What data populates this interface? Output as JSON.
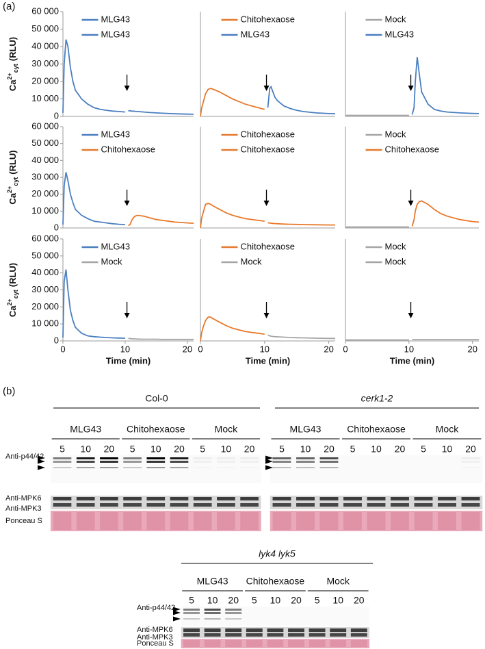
{
  "panel_labels": [
    "(a)",
    "(b)"
  ],
  "chart_data": [
    {
      "type": "line",
      "xlim": [
        0,
        21
      ],
      "ylim": [
        0,
        60000
      ],
      "yticks": [
        0,
        {
          "value": 10000,
          "label": "10 000"
        },
        {
          "value": 20000,
          "label": "20 000"
        },
        {
          "value": 30000,
          "label": "30 000"
        },
        {
          "value": 40000,
          "label": "40 000"
        },
        {
          "value": 50000,
          "label": "50 000"
        },
        {
          "value": 60000,
          "label": "60 000"
        }
      ],
      "ylabel": {
        "base": "Ca",
        "sup": "2+",
        "sub": "cyt",
        "unit": "(RLU)"
      },
      "series": [
        {
          "name": "MLG43",
          "color": "#4a7fc1",
          "x": [
            0,
            0.2,
            0.5,
            0.8,
            1.2,
            1.6,
            2,
            3,
            4,
            5,
            6,
            7,
            8,
            9,
            10
          ],
          "values": [
            2000,
            30000,
            44000,
            40000,
            28000,
            20000,
            15000,
            10000,
            7000,
            5000,
            4000,
            3500,
            3000,
            2800,
            2500
          ]
        },
        {
          "name": "MLG43",
          "color": "#4a7fc1",
          "x": [
            10.5,
            10.8,
            11,
            11.3,
            11.6,
            12,
            13,
            14,
            15,
            16,
            18,
            20,
            21
          ],
          "values": [
            3200,
            3200,
            3000,
            3000,
            2900,
            2800,
            2500,
            2200,
            2000,
            1800,
            1500,
            1300,
            1200
          ]
        }
      ]
    },
    {
      "type": "line",
      "xlim": [
        0,
        21
      ],
      "ylim": [
        0,
        60000
      ],
      "series": [
        {
          "name": "Chitohexaose",
          "color": "#e8782a",
          "x": [
            0,
            0.2,
            0.5,
            0.8,
            1.2,
            1.6,
            2,
            3,
            4,
            5,
            6,
            7,
            8,
            9,
            10
          ],
          "values": [
            0,
            5000,
            9000,
            13000,
            15500,
            16000,
            15500,
            14000,
            12000,
            10000,
            8500,
            7000,
            6000,
            5000,
            4000
          ]
        },
        {
          "name": "MLG43",
          "color": "#4a7fc1",
          "x": [
            10.5,
            10.8,
            11,
            11.3,
            11.6,
            12,
            13,
            14,
            15,
            16,
            18,
            20,
            21
          ],
          "values": [
            5000,
            16000,
            17000,
            14000,
            11000,
            9000,
            6000,
            4500,
            3500,
            2800,
            2000,
            1600,
            1500
          ]
        }
      ]
    },
    {
      "type": "line",
      "xlim": [
        0,
        21
      ],
      "ylim": [
        0,
        60000
      ],
      "series": [
        {
          "name": "Mock",
          "color": "#a5a5a5",
          "x": [
            0,
            0.2,
            0.5,
            0.8,
            1.2,
            1.6,
            2,
            3,
            4,
            5,
            6,
            7,
            8,
            9,
            10
          ],
          "values": [
            500,
            600,
            600,
            600,
            600,
            600,
            600,
            600,
            600,
            600,
            600,
            600,
            600,
            600,
            600
          ]
        },
        {
          "name": "MLG43",
          "color": "#4a7fc1",
          "x": [
            10.5,
            10.8,
            11,
            11.3,
            11.6,
            12,
            13,
            14,
            15,
            16,
            18,
            20,
            21
          ],
          "values": [
            1000,
            5000,
            20000,
            34000,
            25000,
            14000,
            7000,
            4000,
            3000,
            2500,
            2000,
            1700,
            1600
          ]
        }
      ]
    },
    {
      "type": "line",
      "xlim": [
        0,
        21
      ],
      "ylim": [
        0,
        60000
      ],
      "yticks": [
        0,
        {
          "value": 10000,
          "label": "10 000"
        },
        {
          "value": 20000,
          "label": "20 000"
        },
        {
          "value": 30000,
          "label": "30 000"
        },
        {
          "value": 40000,
          "label": "40 000"
        },
        {
          "value": 50000,
          "label": "50 000"
        },
        {
          "value": 60000,
          "label": "60 000"
        }
      ],
      "ylabel": {
        "base": "Ca",
        "sup": "2+",
        "sub": "cyt",
        "unit": "(RLU)"
      },
      "series": [
        {
          "name": "MLG43",
          "color": "#4a7fc1",
          "x": [
            0,
            0.2,
            0.5,
            0.8,
            1.2,
            1.6,
            2,
            3,
            4,
            5,
            6,
            7,
            8,
            9,
            10
          ],
          "values": [
            2000,
            25000,
            33000,
            28000,
            20000,
            15000,
            11000,
            7500,
            5500,
            4000,
            3500,
            3000,
            2500,
            2200,
            2000
          ]
        },
        {
          "name": "Chitohexaose",
          "color": "#e8782a",
          "x": [
            10.5,
            10.8,
            11,
            11.3,
            11.6,
            12,
            13,
            14,
            15,
            16,
            18,
            20,
            21
          ],
          "values": [
            1500,
            2000,
            4000,
            6000,
            7000,
            7500,
            7000,
            6000,
            5000,
            4500,
            3500,
            3000,
            2800
          ]
        }
      ]
    },
    {
      "type": "line",
      "xlim": [
        0,
        21
      ],
      "ylim": [
        0,
        60000
      ],
      "series": [
        {
          "name": "Chitohexaose",
          "color": "#e8782a",
          "x": [
            0,
            0.2,
            0.5,
            0.8,
            1.2,
            1.6,
            2,
            3,
            4,
            5,
            6,
            7,
            8,
            9,
            10
          ],
          "values": [
            0,
            6000,
            10000,
            14000,
            14500,
            14000,
            13000,
            11000,
            9000,
            7500,
            6500,
            5500,
            5000,
            4500,
            4000
          ]
        },
        {
          "name": "Chitohexaose",
          "color": "#e8782a",
          "x": [
            10.5,
            10.8,
            11,
            11.3,
            11.6,
            12,
            13,
            14,
            15,
            16,
            18,
            20,
            21
          ],
          "values": [
            3000,
            3000,
            2800,
            2700,
            2600,
            2500,
            2300,
            2200,
            2100,
            2000,
            1900,
            1800,
            1800
          ]
        }
      ]
    },
    {
      "type": "line",
      "xlim": [
        0,
        21
      ],
      "ylim": [
        0,
        60000
      ],
      "series": [
        {
          "name": "Mock",
          "color": "#a5a5a5",
          "x": [
            0,
            0.2,
            0.5,
            0.8,
            1.2,
            1.6,
            2,
            3,
            4,
            5,
            6,
            7,
            8,
            9,
            10
          ],
          "values": [
            500,
            600,
            600,
            600,
            600,
            600,
            600,
            600,
            600,
            600,
            600,
            600,
            600,
            600,
            600
          ]
        },
        {
          "name": "Chitohexaose",
          "color": "#e8782a",
          "x": [
            10.5,
            10.8,
            11,
            11.3,
            11.6,
            12,
            13,
            14,
            15,
            16,
            18,
            20,
            21
          ],
          "values": [
            1000,
            5000,
            10000,
            14000,
            15500,
            16000,
            14000,
            11000,
            8500,
            7000,
            5000,
            3800,
            3500
          ]
        }
      ]
    },
    {
      "type": "line",
      "xlim": [
        0,
        21
      ],
      "ylim": [
        0,
        60000
      ],
      "yticks": [
        0,
        {
          "value": 10000,
          "label": "10 000"
        },
        {
          "value": 20000,
          "label": "20 000"
        },
        {
          "value": 30000,
          "label": "30 000"
        },
        {
          "value": 40000,
          "label": "40 000"
        },
        {
          "value": 50000,
          "label": "50 000"
        },
        {
          "value": 60000,
          "label": "60 000"
        }
      ],
      "xticks": [
        0,
        10,
        20
      ],
      "xlabel": "Time (min)",
      "ylabel": {
        "base": "Ca",
        "sup": "2+",
        "sub": "cyt",
        "unit": "(RLU)"
      },
      "series": [
        {
          "name": "MLG43",
          "color": "#4a7fc1",
          "x": [
            0,
            0.2,
            0.5,
            0.8,
            1.2,
            1.6,
            2,
            3,
            4,
            5,
            6,
            7,
            8,
            9,
            10
          ],
          "values": [
            2000,
            35000,
            42000,
            30000,
            18000,
            12000,
            8000,
            4500,
            3000,
            2500,
            2200,
            2000,
            1800,
            1700,
            1600
          ]
        },
        {
          "name": "Mock",
          "color": "#a5a5a5",
          "x": [
            10.5,
            10.8,
            11,
            11.3,
            11.6,
            12,
            13,
            14,
            15,
            16,
            18,
            20,
            21
          ],
          "values": [
            1500,
            1400,
            1300,
            1200,
            1200,
            1100,
            1000,
            1000,
            1000,
            900,
            900,
            900,
            900
          ]
        }
      ]
    },
    {
      "type": "line",
      "xlim": [
        0,
        21
      ],
      "ylim": [
        0,
        60000
      ],
      "xticks": [
        0,
        10,
        20
      ],
      "xlabel": "Time (min)",
      "series": [
        {
          "name": "Chitohexaose",
          "color": "#e8782a",
          "x": [
            0,
            0.2,
            0.5,
            0.8,
            1.2,
            1.6,
            2,
            3,
            4,
            5,
            6,
            7,
            8,
            9,
            10
          ],
          "values": [
            0,
            5000,
            9000,
            12000,
            14000,
            14000,
            13000,
            11000,
            9000,
            7500,
            6500,
            5500,
            5000,
            4500,
            4000
          ]
        },
        {
          "name": "Mock",
          "color": "#a5a5a5",
          "x": [
            10.5,
            10.8,
            11,
            11.3,
            11.6,
            12,
            13,
            14,
            15,
            16,
            18,
            20,
            21
          ],
          "values": [
            3500,
            3000,
            2800,
            2600,
            2500,
            2400,
            2200,
            2000,
            1900,
            1800,
            1600,
            1500,
            1500
          ]
        }
      ]
    },
    {
      "type": "line",
      "xlim": [
        0,
        21
      ],
      "ylim": [
        0,
        60000
      ],
      "xticks": [
        0,
        10,
        20
      ],
      "xlabel": "Time (min)",
      "series": [
        {
          "name": "Mock",
          "color": "#a5a5a5",
          "x": [
            0,
            0.2,
            0.5,
            0.8,
            1.2,
            1.6,
            2,
            3,
            4,
            5,
            6,
            7,
            8,
            9,
            10
          ],
          "values": [
            500,
            600,
            600,
            600,
            600,
            600,
            600,
            600,
            600,
            600,
            600,
            600,
            600,
            600,
            600
          ]
        },
        {
          "name": "Mock",
          "color": "#a5a5a5",
          "x": [
            10.5,
            10.8,
            11,
            11.3,
            11.6,
            12,
            13,
            14,
            15,
            16,
            18,
            20,
            21
          ],
          "values": [
            800,
            800,
            800,
            800,
            800,
            800,
            800,
            800,
            800,
            800,
            800,
            800,
            800
          ]
        }
      ]
    }
  ],
  "blots": [
    {
      "title": "Col-0",
      "treatments": [
        {
          "name": "MLG43",
          "times": [
            "5",
            "10",
            "20"
          ]
        },
        {
          "name": "Chitohexaose",
          "times": [
            "5",
            "10",
            "20"
          ]
        },
        {
          "name": "Mock",
          "times": [
            "5",
            "10",
            "20"
          ]
        }
      ],
      "row_labels": [
        "Anti-p44/42",
        "Anti-MPK6",
        "Anti-MPK3",
        "Ponceau S"
      ]
    },
    {
      "title": "cerk1-2",
      "title_style": "italic",
      "treatments": [
        {
          "name": "MLG43",
          "times": [
            "5",
            "10",
            "20"
          ]
        },
        {
          "name": "Chitohexaose",
          "times": [
            "5",
            "10",
            "20"
          ]
        },
        {
          "name": "Mock",
          "times": [
            "5",
            "10",
            "20"
          ]
        }
      ]
    },
    {
      "title": "lyk4 lyk5",
      "title_style": "italic",
      "treatments": [
        {
          "name": "MLG43",
          "times": [
            "5",
            "10",
            "20"
          ]
        },
        {
          "name": "Chitohexaose",
          "times": [
            "5",
            "10",
            "20"
          ]
        },
        {
          "name": "Mock",
          "times": [
            "5",
            "10",
            "20"
          ]
        }
      ],
      "row_labels": [
        "Anti-p44/42",
        "Anti-MPK6",
        "Anti-MPK3",
        "Ponceau S"
      ]
    }
  ]
}
